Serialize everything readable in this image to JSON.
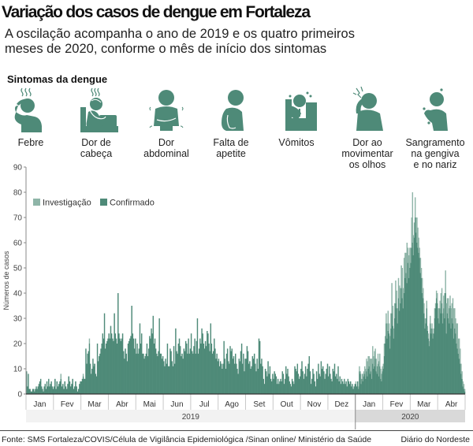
{
  "header": {
    "title": "Variação dos casos de dengue em Fortaleza",
    "subtitle_line1": "A oscilação acompanha o ano de 2019 e os quatro primeiros",
    "subtitle_line2": "meses de 2020, conforme o mês de início dos sintomas"
  },
  "symptoms": {
    "heading": "Sintomas da dengue",
    "items": [
      {
        "icon": "fever-icon",
        "line1": "Febre",
        "line2": "",
        "line3": ""
      },
      {
        "icon": "headache-icon",
        "line1": "Dor de",
        "line2": "cabeça",
        "line3": ""
      },
      {
        "icon": "abdominal-pain-icon",
        "line1": "Dor",
        "line2": "abdominal",
        "line3": ""
      },
      {
        "icon": "appetite-loss-icon",
        "line1": "Falta de",
        "line2": "apetite",
        "line3": ""
      },
      {
        "icon": "vomiting-icon",
        "line1": "Vômitos",
        "line2": "",
        "line3": ""
      },
      {
        "icon": "eye-pain-icon",
        "line1": "Dor ao",
        "line2": "movimentar",
        "line3": "os olhos"
      },
      {
        "icon": "bleeding-icon",
        "line1": "Sangramento",
        "line2": "na gengiva",
        "line3": "e no nariz"
      }
    ],
    "icon_color": "#4e8a78"
  },
  "footer": {
    "source": "Fonte:  SMS Fortaleza/COVIS/Célula de Vigilância Epidemiológica /Sinan online/ Ministério da Saúde",
    "credit": "Diário do Nordeste"
  },
  "chart_data": {
    "type": "bar",
    "stacked": true,
    "title": "",
    "ylabel": "Números de casos",
    "xlabel": "",
    "ylim": [
      0,
      90
    ],
    "yticks": [
      0,
      10,
      20,
      30,
      40,
      50,
      60,
      70,
      80,
      90
    ],
    "legend": {
      "placement": "top-left",
      "entries": [
        {
          "name": "Investigação",
          "color": "#8fb5a8"
        },
        {
          "name": "Confirmado",
          "color": "#4e8a78"
        }
      ]
    },
    "years": [
      {
        "label": "2019",
        "months": 12,
        "band_color": "#f2f2f2"
      },
      {
        "label": "2020",
        "months": 4,
        "band_color": "#d9d9d9"
      }
    ],
    "months": [
      {
        "label": "Jan",
        "confirmed": [
          9,
          3,
          8,
          2,
          2,
          1,
          1,
          2,
          2,
          1,
          2,
          3,
          2,
          3,
          4,
          5,
          6,
          3,
          2,
          1,
          3,
          4,
          2,
          5,
          3,
          6,
          3,
          4,
          5,
          3,
          2
        ],
        "investigation": []
      },
      {
        "label": "Fev",
        "confirmed": [
          3,
          6,
          2,
          5,
          3,
          4,
          5,
          6,
          3,
          4,
          2,
          5,
          3,
          2,
          4,
          7,
          5,
          3,
          4,
          6,
          2,
          3,
          5,
          3,
          1,
          2,
          4,
          5
        ],
        "investigation": [
          0,
          0,
          0,
          0,
          0,
          0,
          0,
          2,
          0,
          0,
          0,
          0,
          0,
          0,
          0,
          0,
          0,
          0,
          0,
          0,
          0,
          0,
          0,
          0,
          0,
          0,
          0,
          0
        ]
      },
      {
        "label": "Mar",
        "confirmed": [
          5,
          6,
          7,
          6,
          6,
          18,
          12,
          16,
          17,
          20,
          12,
          8,
          10,
          14,
          11,
          12,
          8,
          7,
          20,
          13,
          15,
          16,
          18,
          20,
          24,
          22,
          32,
          18,
          20,
          21,
          22
        ],
        "investigation": [
          0,
          0,
          1,
          0,
          0,
          0,
          0,
          0,
          0,
          2,
          0,
          0,
          0,
          0,
          1,
          0,
          0,
          0,
          0,
          0,
          0,
          0,
          0,
          0,
          0,
          0,
          0,
          0,
          0,
          0,
          0
        ]
      },
      {
        "label": "Abr",
        "confirmed": [
          24,
          22,
          27,
          24,
          22,
          21,
          32,
          24,
          22,
          20,
          40,
          24,
          22,
          21,
          22,
          24,
          17,
          14,
          18,
          16,
          13,
          20,
          21,
          22,
          23,
          35,
          24,
          22,
          18,
          22
        ],
        "investigation": [
          0,
          0,
          0,
          0,
          0,
          0,
          0,
          0,
          0,
          0,
          0,
          0,
          0,
          0,
          0,
          0,
          0,
          0,
          0,
          0,
          0,
          0,
          0,
          0,
          0,
          0,
          0,
          0,
          0,
          0
        ]
      },
      {
        "label": "Mai",
        "confirmed": [
          16,
          20,
          16,
          18,
          28,
          20,
          24,
          16,
          16,
          14,
          15,
          16,
          20,
          15,
          18,
          23,
          22,
          26,
          24,
          31,
          20,
          22,
          18,
          16,
          15,
          17,
          30,
          16,
          16,
          14,
          15
        ],
        "investigation": [
          0,
          0,
          0,
          0,
          0,
          0,
          0,
          0,
          0,
          0,
          0,
          0,
          0,
          0,
          0,
          0,
          0,
          0,
          0,
          0,
          0,
          0,
          0,
          0,
          0,
          0,
          0,
          0,
          0,
          0,
          0
        ]
      },
      {
        "label": "Jun",
        "confirmed": [
          13,
          11,
          14,
          12,
          20,
          11,
          11,
          18,
          17,
          13,
          11,
          19,
          12,
          26,
          17,
          16,
          20,
          22,
          19,
          15,
          16,
          14,
          18,
          17,
          21,
          20,
          16,
          22,
          16,
          18
        ],
        "investigation": []
      },
      {
        "label": "Jul",
        "confirmed": [
          24,
          17,
          16,
          19,
          22,
          16,
          21,
          30,
          16,
          18,
          22,
          20,
          26,
          24,
          20,
          18,
          21,
          19,
          25,
          24,
          20,
          17,
          28,
          20,
          16,
          17,
          22,
          18,
          14,
          16,
          13
        ],
        "investigation": []
      },
      {
        "label": "Ago",
        "confirmed": [
          14,
          11,
          13,
          12,
          10,
          12,
          21,
          14,
          10,
          16,
          18,
          13,
          12,
          19,
          17,
          18,
          14,
          15,
          12,
          16,
          12,
          10,
          8,
          14,
          13,
          17,
          20,
          12,
          16,
          9,
          14
        ],
        "investigation": []
      },
      {
        "label": "Set",
        "confirmed": [
          14,
          19,
          17,
          12,
          13,
          10,
          11,
          15,
          14,
          16,
          12,
          9,
          14,
          10,
          22,
          21,
          12,
          14,
          11,
          6,
          4,
          10,
          9,
          7,
          13,
          8,
          11,
          6,
          5,
          8
        ],
        "investigation": []
      },
      {
        "label": "Out",
        "confirmed": [
          6,
          9,
          8,
          7,
          4,
          6,
          4,
          5,
          6,
          5,
          9,
          8,
          4,
          6,
          11,
          8,
          10,
          7,
          5,
          4,
          3,
          6,
          5,
          4,
          11,
          10,
          9,
          12,
          8,
          6,
          7
        ],
        "investigation": []
      },
      {
        "label": "Nov",
        "confirmed": [
          10,
          13,
          9,
          6,
          8,
          11,
          7,
          10,
          12,
          15,
          9,
          4,
          6,
          10,
          8,
          5,
          3,
          9,
          6,
          12,
          8,
          7,
          13,
          10,
          11,
          9,
          6,
          8,
          10,
          12
        ],
        "investigation": []
      },
      {
        "label": "Dez",
        "confirmed": [
          7,
          11,
          8,
          6,
          5,
          10,
          9,
          12,
          7,
          8,
          6,
          11,
          5,
          7,
          4,
          6,
          5,
          4,
          6,
          4,
          5,
          3,
          6,
          5,
          4,
          5,
          3,
          4,
          2,
          3,
          4
        ],
        "investigation": []
      },
      {
        "label": "Jan",
        "confirmed": [
          4,
          3,
          5,
          2,
          9,
          8,
          4,
          6,
          5,
          7,
          8,
          6,
          9,
          7,
          10,
          11,
          8,
          9,
          6,
          12,
          10,
          11,
          14,
          9,
          8,
          12,
          7,
          11,
          6,
          5,
          9
        ],
        "investigation": [
          1,
          0,
          0,
          1,
          2,
          1,
          2,
          2,
          3,
          2,
          3,
          4,
          5,
          6,
          5,
          4,
          6,
          5,
          8,
          7,
          5,
          6,
          4,
          5,
          3,
          4,
          6,
          5,
          4,
          3,
          2
        ]
      },
      {
        "label": "Fev",
        "confirmed": [
          10,
          15,
          20,
          28,
          22,
          25,
          24,
          18,
          26,
          32,
          27,
          22,
          30,
          36,
          34,
          28,
          38,
          33,
          36,
          42,
          38,
          34,
          40,
          46,
          48,
          44,
          52,
          46,
          50
        ],
        "investigation": [
          2,
          5,
          3,
          4,
          6,
          8,
          4,
          5,
          6,
          12,
          8,
          4,
          6,
          9,
          7,
          6,
          8,
          10,
          6,
          9,
          12,
          8,
          14,
          10,
          8,
          16,
          6,
          9,
          8
        ]
      },
      {
        "label": "Mar",
        "confirmed": [
          52,
          58,
          60,
          55,
          62,
          70,
          64,
          60,
          58,
          56,
          54,
          48,
          46,
          40,
          38,
          32,
          26,
          28,
          34,
          25,
          22,
          19,
          28,
          24,
          26,
          22,
          24,
          30,
          34,
          38,
          36
        ],
        "investigation": [
          6,
          12,
          20,
          8,
          6,
          8,
          6,
          10,
          8,
          6,
          4,
          6,
          4,
          6,
          4,
          4,
          4,
          2,
          3,
          2,
          2,
          2,
          3,
          2,
          2,
          2,
          2,
          4,
          2,
          3,
          4
        ]
      },
      {
        "label": "Abr",
        "confirmed": [
          30,
          28,
          34,
          32,
          36,
          28,
          34,
          30,
          40,
          24,
          32,
          30,
          28,
          35,
          26,
          30,
          28,
          22,
          26,
          24,
          20,
          18,
          16,
          14,
          12,
          8,
          6,
          3,
          2,
          1
        ],
        "investigation": [
          4,
          6,
          3,
          8,
          6,
          4,
          5,
          10,
          9,
          12,
          6,
          8,
          6,
          4,
          8,
          6,
          10,
          12,
          8,
          6,
          8,
          10,
          6,
          8,
          6,
          4,
          3,
          2,
          2,
          1
        ]
      }
    ]
  }
}
